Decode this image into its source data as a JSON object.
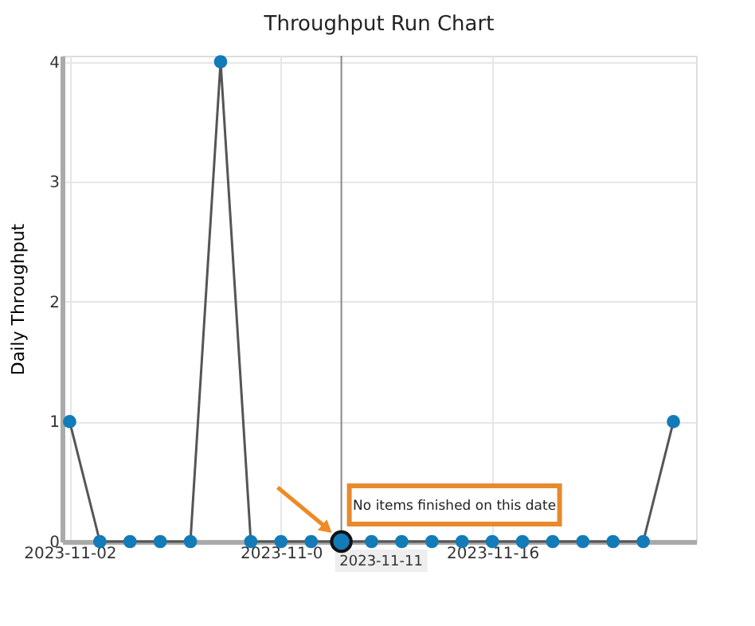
{
  "chart_data": {
    "type": "line",
    "title": "Throughput Run Chart",
    "ylabel": "Daily Throughput",
    "x": [
      "2023-11-02",
      "2023-11-03",
      "2023-11-04",
      "2023-11-05",
      "2023-11-06",
      "2023-11-07",
      "2023-11-08",
      "2023-11-09",
      "2023-11-10",
      "2023-11-11",
      "2023-11-12",
      "2023-11-13",
      "2023-11-14",
      "2023-11-15",
      "2023-11-16",
      "2023-11-17",
      "2023-11-18",
      "2023-11-19",
      "2023-11-20",
      "2023-11-21",
      "2023-11-22"
    ],
    "series": [
      {
        "color": "#137bb8",
        "values": [
          1,
          0,
          0,
          0,
          0,
          4,
          0,
          0,
          0,
          0,
          0,
          0,
          0,
          0,
          0,
          0,
          0,
          0,
          0,
          0,
          1
        ]
      }
    ],
    "xlim": [
      "2023-11-01T18:00",
      "2023-11-22T18:00"
    ],
    "xticks": [
      "2023-11-02",
      {
        "value": "2023-11-09",
        "label": "2023-11-0"
      },
      "2023-11-16"
    ],
    "ylim": [
      0,
      4.05
    ],
    "yticks": [
      0,
      1,
      2,
      3,
      4
    ],
    "ref_lines": [
      {
        "axis": "x",
        "value": "2023-11-11",
        "label": "2023-11-11",
        "color": "#888888"
      }
    ],
    "annotations": [
      {
        "text": "No items finished on this date",
        "x": "2023-11-11",
        "y": 0
      }
    ],
    "grid": true,
    "marker": "circle",
    "line_style": "solid"
  }
}
